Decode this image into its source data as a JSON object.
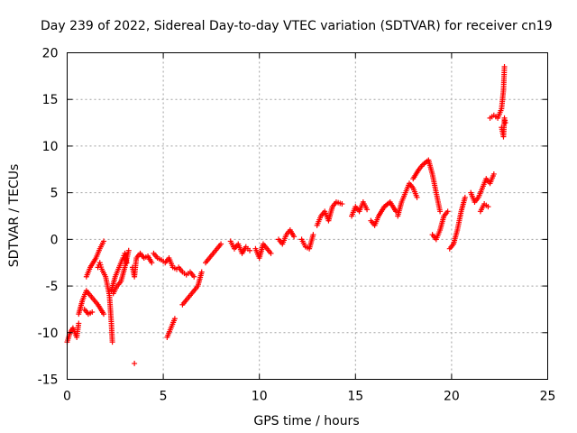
{
  "chart_data": {
    "type": "scatter",
    "title": "Day 239 of 2022, Sidereal Day-to-day VTEC variation (SDTVAR) for receiver cn19",
    "xlabel": "GPS time / hours",
    "ylabel": "SDTVAR / TECUs",
    "xlim": [
      0,
      25
    ],
    "ylim": [
      -15,
      20
    ],
    "xticks": [
      0,
      5,
      10,
      15,
      20,
      25
    ],
    "yticks": [
      -15,
      -10,
      -5,
      0,
      5,
      10,
      15,
      20
    ],
    "xtick_labels": [
      "0",
      "5",
      "10",
      "15",
      "20",
      "25"
    ],
    "ytick_labels": [
      "-15",
      "-10",
      "-5",
      "0",
      "5",
      "10",
      "15",
      "20"
    ],
    "grid": true,
    "marker": "+",
    "series": [
      {
        "name": "SDTVAR",
        "color": "#ff0000",
        "segments": [
          [
            [
              0.0,
              -11.0
            ],
            [
              0.15,
              -10.0
            ],
            [
              0.3,
              -9.5
            ],
            [
              0.5,
              -10.5
            ],
            [
              0.6,
              -9.0
            ]
          ],
          [
            [
              0.6,
              -8.0
            ],
            [
              0.8,
              -6.5
            ],
            [
              1.0,
              -5.5
            ],
            [
              1.2,
              -6.0
            ],
            [
              1.4,
              -6.5
            ],
            [
              1.6,
              -7.0
            ],
            [
              1.9,
              -8.0
            ]
          ],
          [
            [
              1.0,
              -4.0
            ],
            [
              1.2,
              -3.0
            ],
            [
              1.5,
              -2.0
            ],
            [
              1.7,
              -1.0
            ],
            [
              1.9,
              -0.2
            ]
          ],
          [
            [
              0.9,
              -7.5
            ],
            [
              1.1,
              -8.0
            ],
            [
              1.3,
              -7.8
            ]
          ],
          [
            [
              1.6,
              -3.0
            ],
            [
              1.7,
              -2.5
            ],
            [
              1.8,
              -3.2
            ],
            [
              2.0,
              -4.0
            ],
            [
              2.2,
              -6.0
            ],
            [
              2.3,
              -9.0
            ],
            [
              2.35,
              -11.0
            ]
          ],
          [
            [
              2.3,
              -5.5
            ],
            [
              2.5,
              -4.0
            ],
            [
              2.7,
              -3.0
            ],
            [
              2.9,
              -2.0
            ],
            [
              3.0,
              -1.5
            ],
            [
              3.1,
              -2.5
            ]
          ],
          [
            [
              2.4,
              -5.8
            ],
            [
              2.6,
              -5.0
            ],
            [
              2.8,
              -4.5
            ],
            [
              3.0,
              -3.0
            ],
            [
              3.2,
              -1.2
            ]
          ],
          [
            [
              3.4,
              -3.0
            ],
            [
              3.5,
              -4.0
            ],
            [
              3.6,
              -2.0
            ],
            [
              3.8,
              -1.5
            ],
            [
              4.0,
              -2.0
            ],
            [
              4.2,
              -1.8
            ],
            [
              4.4,
              -2.5
            ]
          ],
          [
            [
              4.5,
              -1.5
            ],
            [
              4.7,
              -2.0
            ],
            [
              4.9,
              -2.2
            ],
            [
              5.1,
              -2.5
            ],
            [
              5.3,
              -2.0
            ],
            [
              5.5,
              -3.0
            ],
            [
              5.7,
              -3.2
            ]
          ],
          [
            [
              5.2,
              -10.5
            ],
            [
              5.4,
              -9.5
            ],
            [
              5.6,
              -8.5
            ]
          ],
          [
            [
              5.8,
              -3.0
            ],
            [
              6.0,
              -3.5
            ],
            [
              6.2,
              -3.8
            ],
            [
              6.4,
              -3.5
            ],
            [
              6.6,
              -4.0
            ]
          ],
          [
            [
              6.0,
              -7.0
            ],
            [
              6.2,
              -6.5
            ],
            [
              6.4,
              -6.0
            ],
            [
              6.6,
              -5.5
            ],
            [
              6.8,
              -5.0
            ],
            [
              7.0,
              -3.5
            ]
          ],
          [
            [
              7.2,
              -2.5
            ],
            [
              7.4,
              -2.0
            ],
            [
              7.6,
              -1.5
            ],
            [
              7.8,
              -1.0
            ],
            [
              8.0,
              -0.5
            ]
          ],
          [
            [
              8.5,
              -0.2
            ],
            [
              8.7,
              -1.0
            ],
            [
              8.9,
              -0.5
            ],
            [
              9.1,
              -1.5
            ],
            [
              9.3,
              -0.8
            ],
            [
              9.5,
              -1.2
            ]
          ],
          [
            [
              9.8,
              -1.0
            ],
            [
              10.0,
              -2.0
            ],
            [
              10.2,
              -0.5
            ],
            [
              10.4,
              -1.0
            ],
            [
              10.6,
              -1.5
            ]
          ],
          [
            [
              11.0,
              0.0
            ],
            [
              11.2,
              -0.5
            ],
            [
              11.4,
              0.5
            ],
            [
              11.6,
              1.0
            ],
            [
              11.8,
              0.3
            ]
          ],
          [
            [
              12.2,
              0.0
            ],
            [
              12.4,
              -0.8
            ],
            [
              12.6,
              -1.0
            ],
            [
              12.8,
              0.5
            ]
          ],
          [
            [
              13.0,
              1.5
            ],
            [
              13.2,
              2.5
            ],
            [
              13.4,
              3.0
            ],
            [
              13.6,
              2.0
            ],
            [
              13.8,
              3.5
            ],
            [
              14.0,
              4.0
            ],
            [
              14.3,
              3.8
            ]
          ],
          [
            [
              14.8,
              2.5
            ],
            [
              15.0,
              3.5
            ],
            [
              15.2,
              3.0
            ],
            [
              15.4,
              4.0
            ],
            [
              15.6,
              3.2
            ]
          ],
          [
            [
              15.8,
              2.0
            ],
            [
              16.0,
              1.5
            ],
            [
              16.2,
              2.5
            ],
            [
              16.5,
              3.5
            ],
            [
              16.8,
              4.0
            ],
            [
              17.1,
              3.0
            ]
          ],
          [
            [
              17.2,
              2.5
            ],
            [
              17.4,
              4.0
            ],
            [
              17.6,
              5.0
            ],
            [
              17.8,
              6.0
            ],
            [
              18.0,
              5.5
            ],
            [
              18.2,
              4.5
            ]
          ],
          [
            [
              18.0,
              6.5
            ],
            [
              18.3,
              7.5
            ],
            [
              18.5,
              8.0
            ],
            [
              18.8,
              8.5
            ],
            [
              19.0,
              7.0
            ],
            [
              19.2,
              5.0
            ],
            [
              19.4,
              3.0
            ]
          ],
          [
            [
              19.0,
              0.5
            ],
            [
              19.2,
              0.0
            ],
            [
              19.4,
              1.0
            ],
            [
              19.6,
              2.5
            ],
            [
              19.8,
              3.0
            ]
          ],
          [
            [
              19.9,
              -1.0
            ],
            [
              20.1,
              -0.5
            ],
            [
              20.3,
              1.0
            ],
            [
              20.5,
              3.0
            ],
            [
              20.7,
              4.5
            ]
          ],
          [
            [
              21.0,
              5.0
            ],
            [
              21.2,
              4.0
            ],
            [
              21.4,
              4.5
            ],
            [
              21.6,
              5.5
            ],
            [
              21.8,
              6.5
            ],
            [
              22.0,
              6.0
            ],
            [
              22.2,
              7.0
            ]
          ],
          [
            [
              21.5,
              3.0
            ],
            [
              21.7,
              3.8
            ],
            [
              21.9,
              3.5
            ]
          ],
          [
            [
              22.0,
              13.0
            ],
            [
              22.2,
              13.3
            ],
            [
              22.4,
              13.0
            ],
            [
              22.6,
              14.0
            ],
            [
              22.7,
              16.0
            ],
            [
              22.75,
              18.5
            ]
          ],
          [
            [
              22.6,
              12.0
            ],
            [
              22.7,
              11.0
            ],
            [
              22.75,
              13.0
            ],
            [
              22.8,
              12.5
            ]
          ]
        ],
        "outliers": [
          [
            3.5,
            -13.3
          ]
        ]
      }
    ]
  }
}
